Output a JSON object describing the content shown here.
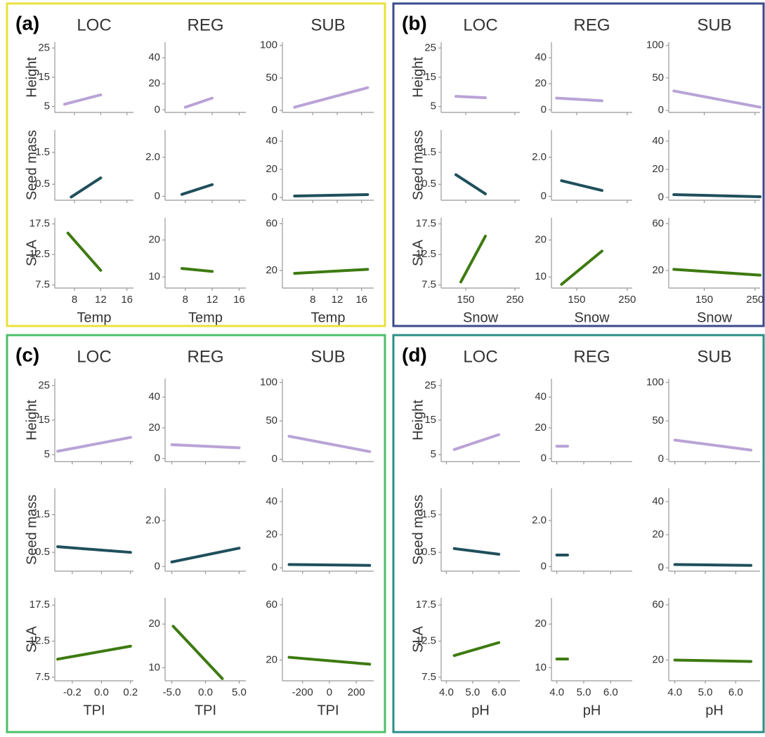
{
  "chart_data": {
    "type": "scatter",
    "trend_colors": [
      "#b9a3d6",
      "#1f4f5c",
      "#3d7a10"
    ],
    "y_axes": [
      [
        {
          "ylim": [
            3,
            27
          ],
          "yticks": [
            5,
            15,
            25
          ]
        },
        {
          "ylim": [
            -2,
            52
          ],
          "yticks": [
            0,
            20,
            40
          ]
        },
        {
          "ylim": [
            -3,
            105
          ],
          "yticks": [
            0,
            50,
            100
          ]
        }
      ],
      [
        {
          "ylim": [
            0,
            2.2
          ],
          "yticks": [
            0.5,
            1.5
          ]
        },
        {
          "ylim": [
            -0.2,
            3.4
          ],
          "yticks": [
            0,
            {
              "value": 2,
              "label": "2.0"
            }
          ]
        },
        {
          "ylim": [
            -2,
            48
          ],
          "yticks": [
            0,
            20,
            40
          ]
        }
      ],
      [
        {
          "ylim": [
            7,
            18.5
          ],
          "yticks": [
            7.5,
            12.5,
            17.5
          ]
        },
        {
          "ylim": [
            7,
            26
          ],
          "yticks": [
            10,
            20
          ]
        },
        {
          "ylim": [
            5,
            65
          ],
          "yticks": [
            20,
            60
          ]
        }
      ]
    ],
    "panels": [
      {
        "label": "(a)",
        "border": "#e8e23c",
        "columns": [
          "LOC",
          "REG",
          "SUB"
        ],
        "rows": [
          "Height",
          "Seed mass",
          "SLA"
        ],
        "xlabel": "Temp",
        "x_axes": [
          {
            "xlim": [
              5,
              17
            ],
            "xticks": [
              8,
              12,
              16
            ]
          },
          {
            "xlim": [
              5,
              17
            ],
            "xticks": [
              8,
              12,
              16
            ]
          },
          {
            "xlim": [
              3,
              18
            ],
            "xticks": [
              8,
              12,
              16
            ]
          }
        ],
        "trends": [
          [
            {
              "x": [
                6.5,
                12
              ],
              "y": [
                5.8,
                9
              ]
            },
            {
              "x": [
                8,
                12
              ],
              "y": [
                2,
                9
              ]
            },
            {
              "x": [
                5,
                17
              ],
              "y": [
                5,
                35
              ]
            }
          ],
          [
            {
              "x": [
                7.5,
                12
              ],
              "y": [
                0.1,
                0.7
              ]
            },
            {
              "x": [
                7.5,
                12
              ],
              "y": [
                0.1,
                0.6
              ]
            },
            {
              "x": [
                5,
                17
              ],
              "y": [
                1,
                2
              ]
            }
          ],
          [
            {
              "x": [
                7,
                12
              ],
              "y": [
                16,
                9.9
              ]
            },
            {
              "x": [
                7.5,
                12
              ],
              "y": [
                12.3,
                11.5
              ]
            },
            {
              "x": [
                5,
                17
              ],
              "y": [
                17.5,
                21
              ]
            }
          ]
        ]
      },
      {
        "label": "(b)",
        "border": "#3b4a8c",
        "columns": [
          "LOC",
          "REG",
          "SUB"
        ],
        "rows": [
          "Height",
          "Seed mass",
          "SLA"
        ],
        "xlabel": "Snow",
        "x_axes": [
          {
            "xlim": [
              100,
              260
            ],
            "xticks": [
              150,
              250
            ]
          },
          {
            "xlim": [
              100,
              260
            ],
            "xticks": [
              150,
              250
            ]
          },
          {
            "xlim": [
              80,
              260
            ],
            "xticks": [
              150,
              250
            ]
          }
        ],
        "trends": [
          [
            {
              "x": [
                130,
                190
              ],
              "y": [
                8.5,
                8
              ]
            },
            {
              "x": [
                110,
                200
              ],
              "y": [
                9,
                7
              ]
            },
            {
              "x": [
                90,
                260
              ],
              "y": [
                30,
                5
              ]
            }
          ],
          [
            {
              "x": [
                130,
                190
              ],
              "y": [
                0.8,
                0.2
              ]
            },
            {
              "x": [
                120,
                200
              ],
              "y": [
                0.8,
                0.3
              ]
            },
            {
              "x": [
                90,
                260
              ],
              "y": [
                2,
                0.5
              ]
            }
          ],
          [
            {
              "x": [
                140,
                190
              ],
              "y": [
                8,
                15.5
              ]
            },
            {
              "x": [
                120,
                200
              ],
              "y": [
                8,
                17
              ]
            },
            {
              "x": [
                90,
                260
              ],
              "y": [
                21,
                16
              ]
            }
          ]
        ]
      },
      {
        "label": "(c)",
        "border": "#4cbf6a",
        "columns": [
          "LOC",
          "REG",
          "SUB"
        ],
        "rows": [
          "Height",
          "Seed mass",
          "SLA"
        ],
        "xlabel": "TPI",
        "x_axes": [
          {
            "xlim": [
              -0.32,
              0.22
            ],
            "xticks": [
              -0.2,
              {
                "value": 0,
                "label": "0.0"
              },
              0.2
            ]
          },
          {
            "xlim": [
              -6,
              6
            ],
            "xticks": [
              {
                "value": -5,
                "label": "-5.0"
              },
              {
                "value": 0,
                "label": "0.0"
              },
              {
                "value": 5,
                "label": "5.0"
              }
            ]
          },
          {
            "xlim": [
              -350,
              330
            ],
            "xticks": [
              -200,
              0,
              200
            ]
          }
        ],
        "trends": [
          [
            {
              "x": [
                -0.3,
                0.2
              ],
              "y": [
                6,
                10
              ]
            },
            {
              "x": [
                -5,
                5
              ],
              "y": [
                9,
                7
              ]
            },
            {
              "x": [
                -300,
                300
              ],
              "y": [
                30,
                10
              ]
            }
          ],
          [
            {
              "x": [
                -0.3,
                0.2
              ],
              "y": [
                0.65,
                0.5
              ]
            },
            {
              "x": [
                -5,
                5
              ],
              "y": [
                0.2,
                0.8
              ]
            },
            {
              "x": [
                -300,
                300
              ],
              "y": [
                2,
                1.5
              ]
            }
          ],
          [
            {
              "x": [
                -0.3,
                0.2
              ],
              "y": [
                10,
                11.8
              ]
            },
            {
              "x": [
                -4.8,
                2.5
              ],
              "y": [
                19.5,
                7.5
              ]
            },
            {
              "x": [
                -300,
                300
              ],
              "y": [
                22,
                17
              ]
            }
          ]
        ]
      },
      {
        "label": "(d)",
        "border": "#2a8f88",
        "columns": [
          "LOC",
          "REG",
          "SUB"
        ],
        "rows": [
          "Height",
          "Seed mass",
          "SLA"
        ],
        "xlabel": "pH",
        "x_axes": [
          {
            "xlim": [
              3.8,
              6.8
            ],
            "xticks": [
              {
                "value": 4,
                "label": "4.0"
              },
              {
                "value": 5,
                "label": "5.0"
              },
              {
                "value": 6,
                "label": "6.0"
              }
            ]
          },
          {
            "xlim": [
              3.8,
              6.8
            ],
            "xticks": [
              {
                "value": 4,
                "label": "4.0"
              },
              {
                "value": 5,
                "label": "5.0"
              },
              {
                "value": 6,
                "label": "6.0"
              }
            ]
          },
          {
            "xlim": [
              3.8,
              6.8
            ],
            "xticks": [
              {
                "value": 4,
                "label": "4.0"
              },
              {
                "value": 5,
                "label": "5.0"
              },
              {
                "value": 6,
                "label": "6.0"
              }
            ]
          }
        ],
        "trends": [
          [
            {
              "x": [
                4.3,
                6
              ],
              "y": [
                6.5,
                10.8
              ]
            },
            {
              "x": [
                4,
                4.4
              ],
              "y": [
                8,
                8
              ]
            },
            {
              "x": [
                4,
                6.5
              ],
              "y": [
                25,
                12
              ]
            }
          ],
          [
            {
              "x": [
                4.3,
                6
              ],
              "y": [
                0.6,
                0.45
              ]
            },
            {
              "x": [
                4,
                4.4
              ],
              "y": [
                0.5,
                0.5
              ]
            },
            {
              "x": [
                4,
                6.5
              ],
              "y": [
                2,
                1.5
              ]
            }
          ],
          [
            {
              "x": [
                4.3,
                6
              ],
              "y": [
                10.5,
                12.3
              ]
            },
            {
              "x": [
                4,
                4.4
              ],
              "y": [
                12,
                12
              ]
            },
            {
              "x": [
                4,
                6.5
              ],
              "y": [
                20,
                19
              ]
            }
          ]
        ]
      }
    ]
  }
}
